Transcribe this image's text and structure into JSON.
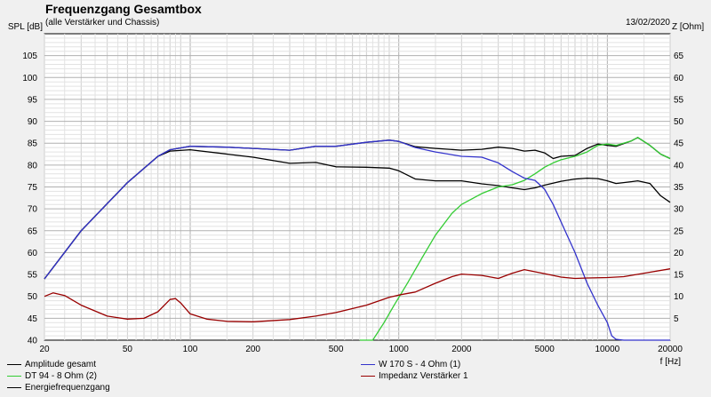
{
  "header": {
    "title": "Frequenzgang Gesamtbox",
    "subtitle": "(alle Verstärker und Chassis)",
    "date": "13/02/2020"
  },
  "chart_data": {
    "type": "line",
    "title": "Frequenzgang Gesamtbox",
    "subtitle": "(alle Verstärker und Chassis)",
    "xlabel": "f [Hz]",
    "ylabel_left": "SPL [dB]",
    "ylabel_right": "Z [Ohm]",
    "x_scale": "log",
    "xlim": [
      20,
      20000
    ],
    "ylim_left": [
      40,
      110
    ],
    "ylim_right": [
      0,
      70
    ],
    "x_ticks": [
      20,
      50,
      100,
      200,
      500,
      1000,
      2000,
      5000,
      10000,
      20000
    ],
    "y_ticks_left": [
      40,
      45,
      50,
      55,
      60,
      65,
      70,
      75,
      80,
      85,
      90,
      95,
      100,
      105
    ],
    "y_ticks_right": [
      5,
      10,
      15,
      20,
      25,
      30,
      35,
      40,
      45,
      50,
      55,
      60,
      65
    ],
    "grid": true,
    "series": [
      {
        "name": "Amplitude gesamt",
        "color": "#000000",
        "axis": "left",
        "x": [
          20,
          30,
          50,
          70,
          80,
          100,
          150,
          200,
          300,
          400,
          500,
          700,
          900,
          1000,
          1200,
          1500,
          2000,
          2500,
          3000,
          3500,
          4000,
          4500,
          5000,
          5500,
          6000,
          7000,
          8000,
          9000,
          10000,
          11000,
          13000,
          14000,
          16000,
          18000,
          20000
        ],
        "y": [
          54,
          65,
          76,
          82,
          83.5,
          84.3,
          84.1,
          83.8,
          83.4,
          84.3,
          84.3,
          85.2,
          85.7,
          85.4,
          84.2,
          83.8,
          83.4,
          83.6,
          84.1,
          83.8,
          83.2,
          83.4,
          82.8,
          81.5,
          82.0,
          82.2,
          83.8,
          84.8,
          84.5,
          84.3,
          85.5,
          86.3,
          84.5,
          82.5,
          81.5
        ]
      },
      {
        "name": "Energiefrequenzgang",
        "color": "#000000",
        "axis": "left",
        "x": [
          20,
          30,
          50,
          70,
          80,
          100,
          150,
          200,
          300,
          400,
          500,
          700,
          900,
          1000,
          1200,
          1500,
          2000,
          2500,
          3000,
          3500,
          4000,
          4500,
          5000,
          6000,
          7000,
          8000,
          9000,
          10000,
          11000,
          13000,
          14000,
          16000,
          18000,
          20000
        ],
        "y": [
          54,
          65,
          76,
          82,
          83.2,
          83.5,
          82.5,
          81.8,
          80.4,
          80.6,
          79.6,
          79.5,
          79.3,
          78.7,
          76.8,
          76.4,
          76.4,
          75.7,
          75.3,
          74.8,
          74.4,
          74.8,
          75.4,
          76.3,
          76.8,
          77.0,
          76.9,
          76.4,
          75.8,
          76.2,
          76.4,
          75.8,
          73.0,
          71.5
        ]
      },
      {
        "name": "DT 94 - 8 Ohm (2)",
        "color": "#33cc33",
        "axis": "left",
        "x": [
          650,
          750,
          850,
          950,
          1100,
          1300,
          1500,
          1800,
          2000,
          2500,
          3000,
          3500,
          4000,
          4500,
          5000,
          5500,
          6000,
          7000,
          8000,
          9000,
          10000,
          11000,
          13000,
          14000,
          16000,
          18000,
          20000
        ],
        "y": [
          40,
          40,
          44,
          48,
          53,
          59,
          64,
          69,
          71,
          73.5,
          75,
          75.5,
          76.5,
          78,
          79.5,
          80.5,
          81.2,
          82.0,
          83.0,
          84.5,
          84.8,
          84.5,
          85.5,
          86.3,
          84.5,
          82.5,
          81.5
        ]
      },
      {
        "name": "W 170 S - 4 Ohm (1)",
        "color": "#3333cc",
        "axis": "left",
        "x": [
          20,
          30,
          50,
          70,
          80,
          100,
          150,
          200,
          300,
          400,
          500,
          700,
          900,
          1000,
          1200,
          1500,
          2000,
          2500,
          3000,
          3500,
          4000,
          4500,
          5000,
          5500,
          6000,
          7000,
          8000,
          9000,
          10000,
          10500,
          11000,
          12000,
          15000,
          20000
        ],
        "y": [
          54,
          65,
          76,
          82,
          83.5,
          84.3,
          84.1,
          83.8,
          83.4,
          84.3,
          84.3,
          85.2,
          85.7,
          85.4,
          84.0,
          83.0,
          82.0,
          81.8,
          80.5,
          78.5,
          77.0,
          76.5,
          74.5,
          71.0,
          67.0,
          60.0,
          53.0,
          48.0,
          44.0,
          41.0,
          40.2,
          40,
          40,
          40
        ]
      },
      {
        "name": "Impedanz Verstärker 1",
        "color": "#990000",
        "axis": "right",
        "x": [
          20,
          22,
          25,
          30,
          40,
          50,
          60,
          70,
          80,
          85,
          90,
          100,
          120,
          150,
          200,
          300,
          400,
          500,
          700,
          900,
          1000,
          1200,
          1500,
          1800,
          2000,
          2500,
          3000,
          3500,
          4000,
          5000,
          6000,
          7000,
          8000,
          10000,
          12000,
          15000,
          20000
        ],
        "y": [
          10,
          10.8,
          10.2,
          8,
          5.5,
          4.8,
          5.0,
          6.5,
          9.3,
          9.5,
          8.5,
          6.0,
          4.8,
          4.3,
          4.2,
          4.7,
          5.5,
          6.3,
          8.0,
          9.8,
          10.3,
          11.0,
          13.0,
          14.5,
          15.1,
          14.8,
          14.1,
          15.3,
          16.1,
          15.2,
          14.4,
          14.1,
          14.2,
          14.3,
          14.5,
          15.3,
          16.3
        ]
      }
    ],
    "legend": [
      "Amplitude gesamt",
      "W 170 S - 4 Ohm (1)",
      "DT 94 - 8 Ohm (2)",
      "Impedanz Verstärker 1",
      "Energiefrequenzgang"
    ],
    "legend_position": "bottom"
  }
}
